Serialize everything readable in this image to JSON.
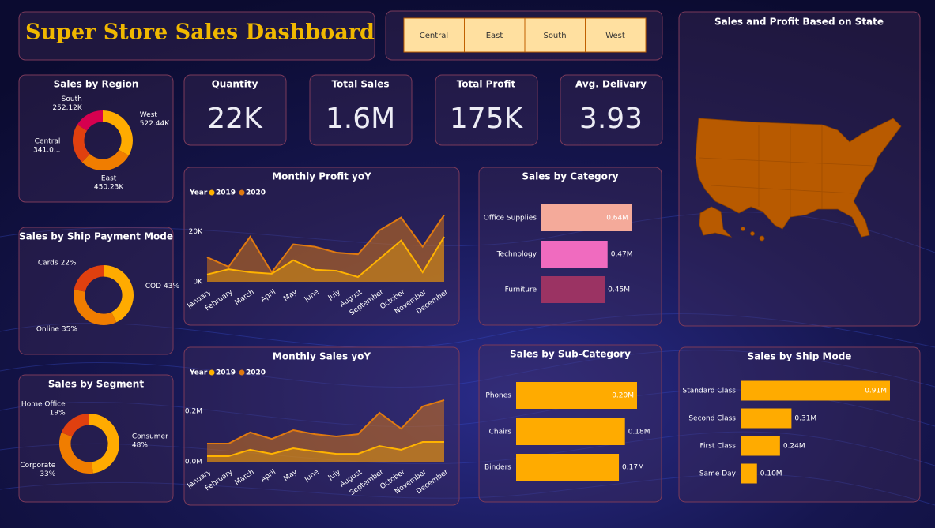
{
  "title": "Super Store Sales Dashboard",
  "slicer": {
    "items": [
      "Central",
      "East",
      "South",
      "West"
    ]
  },
  "kpis": [
    {
      "label": "Quantity",
      "value": "22K"
    },
    {
      "label": "Total Sales",
      "value": "1.6M"
    },
    {
      "label": "Total Profit",
      "value": "175K"
    },
    {
      "label": "Avg. Delivary",
      "value": "3.93"
    }
  ],
  "map": {
    "title": "Sales and Profit Based on State"
  },
  "chart_data": [
    {
      "type": "donut",
      "title": "Sales by Region",
      "categories": [
        "West",
        "East",
        "Central",
        "South"
      ],
      "values": [
        522.44,
        450.23,
        341.0,
        252.12
      ],
      "value_labels": [
        "522.44K",
        "450.23K",
        "341.0...",
        "252.12K"
      ],
      "colors": [
        "#ffab00",
        "#f07d00",
        "#e0400f",
        "#d6004f"
      ]
    },
    {
      "type": "donut",
      "title": "Sales by Ship Payment Mode",
      "categories": [
        "COD",
        "Online",
        "Cards"
      ],
      "values": [
        43,
        35,
        22
      ],
      "value_labels": [
        "43%",
        "35%",
        "22%"
      ],
      "colors": [
        "#ffab00",
        "#f07d00",
        "#e0400f"
      ]
    },
    {
      "type": "donut",
      "title": "Sales by Segment",
      "categories": [
        "Consumer",
        "Corporate",
        "Home Office"
      ],
      "values": [
        48,
        33,
        19
      ],
      "value_labels": [
        "48%",
        "33%",
        "19%"
      ],
      "colors": [
        "#ffab00",
        "#f07d00",
        "#e0400f"
      ]
    },
    {
      "type": "area",
      "title": "Monthly Profit yoY",
      "legend_title": "Year",
      "categories": [
        "January",
        "February",
        "March",
        "April",
        "May",
        "June",
        "July",
        "August",
        "September",
        "October",
        "November",
        "December"
      ],
      "series": [
        {
          "name": "2019",
          "color": "#ffb300",
          "values": [
            2900,
            5000,
            3800,
            3200,
            8600,
            4800,
            4400,
            1900,
            9200,
            16500,
            3800,
            18000
          ]
        },
        {
          "name": "2020",
          "color": "#e07a10",
          "values": [
            9800,
            6000,
            18000,
            3800,
            15000,
            14000,
            11700,
            11000,
            20600,
            25700,
            14000,
            26700
          ]
        }
      ],
      "ylim": [
        0,
        30000
      ],
      "yticks": [
        {
          "value": 0,
          "label": "0K"
        },
        {
          "value": 20000,
          "label": "20K"
        }
      ],
      "grid": false
    },
    {
      "type": "area",
      "title": "Monthly Sales yoY",
      "legend_title": "Year",
      "categories": [
        "January",
        "February",
        "March",
        "April",
        "May",
        "June",
        "July",
        "August",
        "September",
        "October",
        "November",
        "December"
      ],
      "series": [
        {
          "name": "2019",
          "color": "#ffb300",
          "values": [
            22000,
            22000,
            47000,
            31000,
            53000,
            41000,
            31000,
            31000,
            62000,
            47000,
            78000,
            78000
          ]
        },
        {
          "name": "2020",
          "color": "#e07a10",
          "values": [
            72000,
            72000,
            116000,
            90000,
            125000,
            109000,
            100000,
            109000,
            194000,
            131000,
            219000,
            244000
          ]
        }
      ],
      "ylim": [
        0,
        300000
      ],
      "yticks": [
        {
          "value": 0,
          "label": "0.0M"
        },
        {
          "value": 200000,
          "label": "0.2M"
        }
      ],
      "grid": false
    },
    {
      "type": "bar",
      "title": "Sales by Category",
      "categories": [
        "Office Supplies",
        "Technology",
        "Furniture"
      ],
      "values": [
        0.64,
        0.47,
        0.45
      ],
      "value_labels": [
        "0.64M",
        "0.47M",
        "0.45M"
      ],
      "colors": [
        "#f4aa9a",
        "#f06bbf",
        "#9b3363"
      ]
    },
    {
      "type": "bar",
      "title": "Sales by Sub-Category",
      "categories": [
        "Phones",
        "Chairs",
        "Binders"
      ],
      "values": [
        0.2,
        0.18,
        0.17
      ],
      "value_labels": [
        "0.20M",
        "0.18M",
        "0.17M"
      ],
      "colors": [
        "#ffab00",
        "#ffab00",
        "#ffab00"
      ]
    },
    {
      "type": "bar",
      "title": "Sales by Ship Mode",
      "categories": [
        "Standard Class",
        "Second Class",
        "First Class",
        "Same Day"
      ],
      "values": [
        0.91,
        0.31,
        0.24,
        0.1
      ],
      "value_labels": [
        "0.91M",
        "0.31M",
        "0.24M",
        "0.10M"
      ],
      "colors": [
        "#ffab00",
        "#ffab00",
        "#ffab00",
        "#ffab00"
      ]
    }
  ]
}
